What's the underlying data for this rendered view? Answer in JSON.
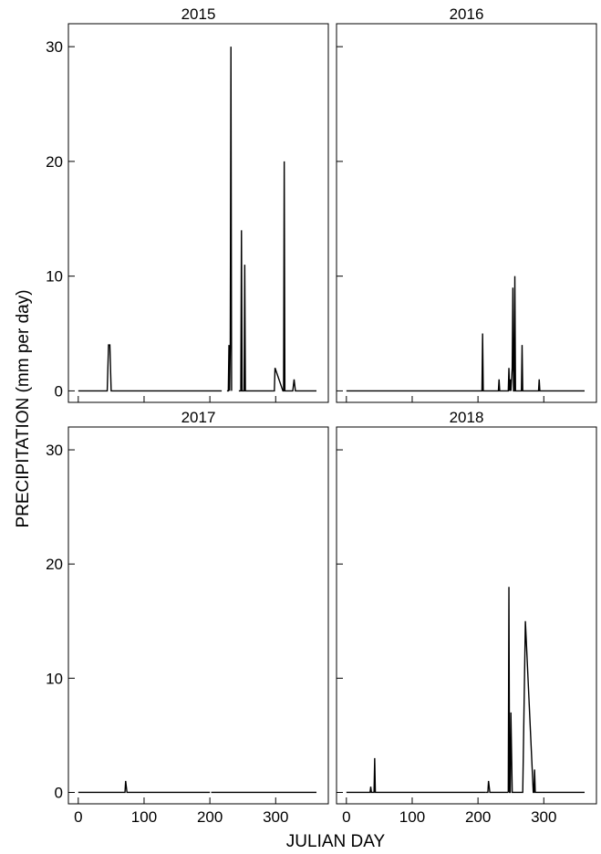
{
  "chart_data": {
    "type": "line",
    "xlabel": "JULIAN DAY",
    "ylabel": "PRECIPITATION (mm per day)",
    "xlim": [
      -15,
      380
    ],
    "ylim": [
      -1,
      32
    ],
    "xticks": [
      0,
      100,
      200,
      300
    ],
    "yticks": [
      0,
      10,
      20,
      30
    ],
    "line_color": "#000000",
    "panels": [
      {
        "title": "2015",
        "series": [
          {
            "x": [
              0,
              44,
              46,
              48,
              50,
              218
            ],
            "y": [
              0,
              0,
              4,
              4,
              0,
              0
            ]
          },
          {
            "x": [
              226,
              228,
              229,
              230,
              231,
              232,
              233
            ],
            "y": [
              0,
              0,
              4,
              0,
              4,
              30,
              0
            ]
          },
          {
            "x": [
              244,
              247,
              248,
              249,
              252,
              253,
              254,
              296
            ],
            "y": [
              0,
              0,
              14,
              0,
              0,
              11,
              0,
              0
            ]
          },
          {
            "x": [
              296,
              298,
              299,
              311,
              312,
              313,
              314,
              326,
              328,
              330,
              362
            ],
            "y": [
              0,
              0,
              2,
              0,
              0,
              20,
              0,
              0,
              1,
              0,
              0
            ]
          }
        ]
      },
      {
        "title": "2016",
        "series": [
          {
            "x": [
              0,
              206,
              207,
              208,
              209,
              230,
              231,
              232,
              233,
              246,
              247,
              248,
              249,
              250,
              251,
              252,
              253,
              254,
              255,
              256,
              257,
              258,
              259,
              260,
              261,
              262,
              266,
              267,
              268,
              269,
              292,
              293,
              294,
              295,
              362
            ],
            "y": [
              0,
              0,
              5,
              0,
              0,
              0,
              0,
              1,
              0,
              0,
              2,
              0,
              1,
              0,
              1,
              2,
              9,
              0,
              0,
              10,
              0,
              0,
              0,
              0,
              0,
              0,
              0,
              4,
              0,
              0,
              0,
              1,
              0,
              0,
              0
            ]
          }
        ]
      },
      {
        "title": "2017",
        "series": [
          {
            "x": [
              0,
              70,
              71,
              72,
              74,
              200
            ],
            "y": [
              0,
              0,
              0,
              1,
              0,
              0
            ]
          },
          {
            "x": [
              202,
              362
            ],
            "y": [
              0,
              0
            ]
          }
        ]
      },
      {
        "title": "2018",
        "series": [
          {
            "x": [
              0,
              36,
              37,
              38,
              39,
              42,
              43,
              44,
              45,
              212
            ],
            "y": [
              0,
              0,
              0.5,
              0,
              0,
              0,
              3,
              0,
              0,
              0
            ]
          },
          {
            "x": [
              212,
              214,
              215,
              216,
              218,
              230,
              231,
              238,
              239,
              240,
              244,
              246
            ],
            "y": [
              0,
              0,
              0,
              1,
              0,
              0,
              0,
              0,
              0,
              0,
              0,
              0
            ]
          },
          {
            "x": [
              246,
              247,
              248,
              249,
              250,
              252,
              253,
              254,
              268,
              272,
              284,
              285,
              286,
              287,
              288,
              362
            ],
            "y": [
              0,
              18,
              0,
              0,
              7,
              0,
              0,
              0,
              0,
              15,
              0,
              0,
              2,
              0,
              0,
              0
            ]
          }
        ]
      }
    ]
  }
}
